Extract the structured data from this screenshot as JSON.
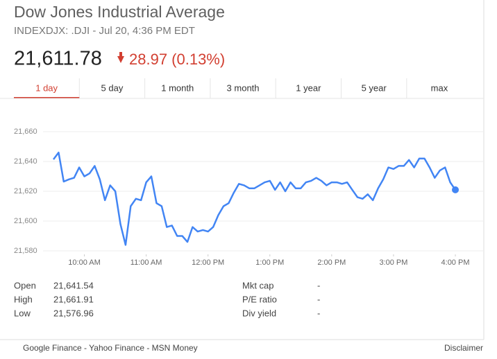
{
  "header": {
    "title": "Dow Jones Industrial Average",
    "subtitle": "INDEXDJX: .DJI - Jul 20, 4:36 PM EDT",
    "price": "21,611.78",
    "change": "28.97 (0.13%)"
  },
  "tabs": [
    "1 day",
    "5 day",
    "1 month",
    "3 month",
    "1 year",
    "5 year",
    "max"
  ],
  "chart_data": {
    "type": "line",
    "color": "#4285f4",
    "grid": true,
    "x": [
      "9:30 AM",
      "9:35 AM",
      "9:40 AM",
      "9:45 AM",
      "9:50 AM",
      "9:55 AM",
      "10:00 AM",
      "10:05 AM",
      "10:10 AM",
      "10:15 AM",
      "10:20 AM",
      "10:25 AM",
      "10:30 AM",
      "10:35 AM",
      "10:40 AM",
      "10:45 AM",
      "10:50 AM",
      "10:55 AM",
      "11:00 AM",
      "11:05 AM",
      "11:10 AM",
      "11:15 AM",
      "11:20 AM",
      "11:25 AM",
      "11:30 AM",
      "11:35 AM",
      "11:40 AM",
      "11:45 AM",
      "11:50 AM",
      "11:55 AM",
      "12:00 PM",
      "12:05 PM",
      "12:10 PM",
      "12:15 PM",
      "12:20 PM",
      "12:25 PM",
      "12:30 PM",
      "12:35 PM",
      "12:40 PM",
      "12:45 PM",
      "12:50 PM",
      "12:55 PM",
      "1:00 PM",
      "1:05 PM",
      "1:10 PM",
      "1:15 PM",
      "1:20 PM",
      "1:25 PM",
      "1:30 PM",
      "1:35 PM",
      "1:40 PM",
      "1:45 PM",
      "1:50 PM",
      "1:55 PM",
      "2:00 PM",
      "2:05 PM",
      "2:10 PM",
      "2:15 PM",
      "2:20 PM",
      "2:25 PM",
      "2:30 PM",
      "2:35 PM",
      "2:40 PM",
      "2:45 PM",
      "2:50 PM",
      "2:55 PM",
      "3:00 PM",
      "3:05 PM",
      "3:10 PM",
      "3:15 PM",
      "3:20 PM",
      "3:25 PM",
      "3:30 PM",
      "3:35 PM",
      "3:40 PM",
      "3:45 PM",
      "3:50 PM",
      "3:55 PM",
      "4:00 PM"
    ],
    "values": [
      21641.4,
      21646,
      21626.5,
      21628,
      21629,
      21636,
      21630,
      21632,
      21637,
      21628,
      21614,
      21624,
      21620,
      21598,
      21584,
      21610,
      21615,
      21614,
      21626,
      21630,
      21612,
      21610,
      21596,
      21597,
      21590,
      21590,
      21586,
      21596,
      21593,
      21594,
      21593,
      21596,
      21604,
      21610,
      21612,
      21619,
      21625,
      21624,
      21622,
      21622,
      21624,
      21626,
      21627,
      21621,
      21626,
      21620,
      21626,
      21622,
      21622,
      21626,
      21627,
      21629,
      21627,
      21624,
      21626,
      21626,
      21625,
      21626,
      21621,
      21616,
      21615,
      21618,
      21614,
      21622,
      21628,
      21636,
      21635,
      21637,
      21637,
      21641,
      21636,
      21642,
      21642,
      21636,
      21629,
      21634,
      21636,
      21626,
      21621
    ],
    "xlim": [
      "9:30 AM",
      "4:00 PM"
    ],
    "xticks": [
      "10:00 AM",
      "11:00 AM",
      "12:00 PM",
      "1:00 PM",
      "2:00 PM",
      "3:00 PM",
      "4:00 PM"
    ],
    "ylim": [
      21580,
      21660
    ],
    "yticks": [
      {
        "value": 21580,
        "label": "21,580"
      },
      {
        "value": 21600,
        "label": "21,600"
      },
      {
        "value": 21620,
        "label": "21,620"
      },
      {
        "value": 21640,
        "label": "21,640"
      },
      {
        "value": 21660,
        "label": "21,660"
      }
    ]
  },
  "stats": {
    "left": [
      {
        "label": "Open",
        "value": "21,641.54"
      },
      {
        "label": "High",
        "value": "21,661.91"
      },
      {
        "label": "Low",
        "value": "21,576.96"
      }
    ],
    "right": [
      {
        "label": "Mkt cap",
        "value": "-"
      },
      {
        "label": "P/E ratio",
        "value": "-"
      },
      {
        "label": "Div yield",
        "value": "-"
      }
    ]
  },
  "footer": {
    "sources": "Google Finance - Yahoo Finance - MSN Money",
    "disclaimer": "Disclaimer"
  }
}
